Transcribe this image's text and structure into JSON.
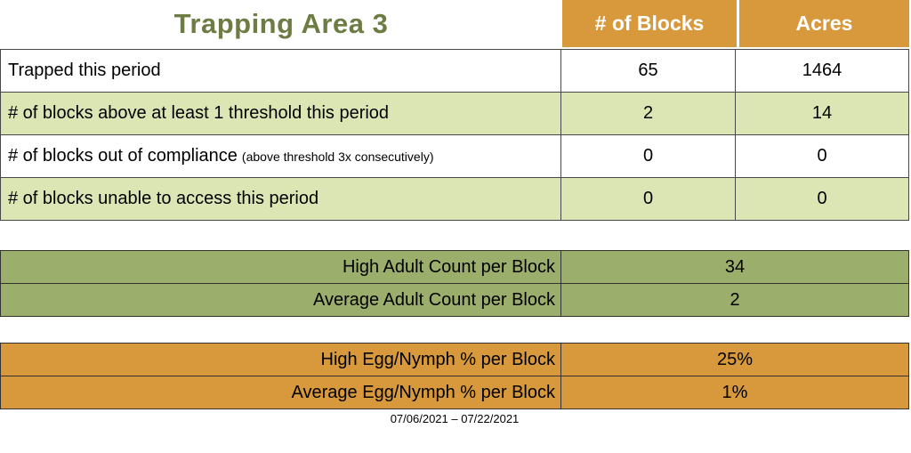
{
  "title": "Trapping Area 3",
  "columns": {
    "blocks": "# of Blocks",
    "acres": "Acres"
  },
  "main_table": {
    "rows": [
      {
        "label": "Trapped this period",
        "note": "",
        "blocks": "65",
        "acres": "1464"
      },
      {
        "label": "# of blocks above at least 1 threshold this period",
        "note": "",
        "blocks": "2",
        "acres": "14"
      },
      {
        "label": "# of blocks out of compliance",
        "note": "(above threshold 3x consecutively)",
        "blocks": "0",
        "acres": "0"
      },
      {
        "label": "# of blocks unable to access this period",
        "note": "",
        "blocks": "0",
        "acres": "0"
      }
    ]
  },
  "adult_table": {
    "rows": [
      {
        "label": "High Adult Count per Block",
        "value": "34"
      },
      {
        "label": "Average Adult Count per Block",
        "value": "2"
      }
    ]
  },
  "egg_table": {
    "rows": [
      {
        "label": "High Egg/Nymph % per Block",
        "value": "25%"
      },
      {
        "label": "Average Egg/Nymph % per Block",
        "value": "1%"
      }
    ]
  },
  "footer": {
    "date_range": "07/06/2021 – 07/22/2021"
  },
  "colors": {
    "header_orange": "#D7993B",
    "row_light_green": "#DCE6B5",
    "adult_olive": "#9CAE6B",
    "title_green": "#6C7C43",
    "border_dark": "#474747"
  }
}
